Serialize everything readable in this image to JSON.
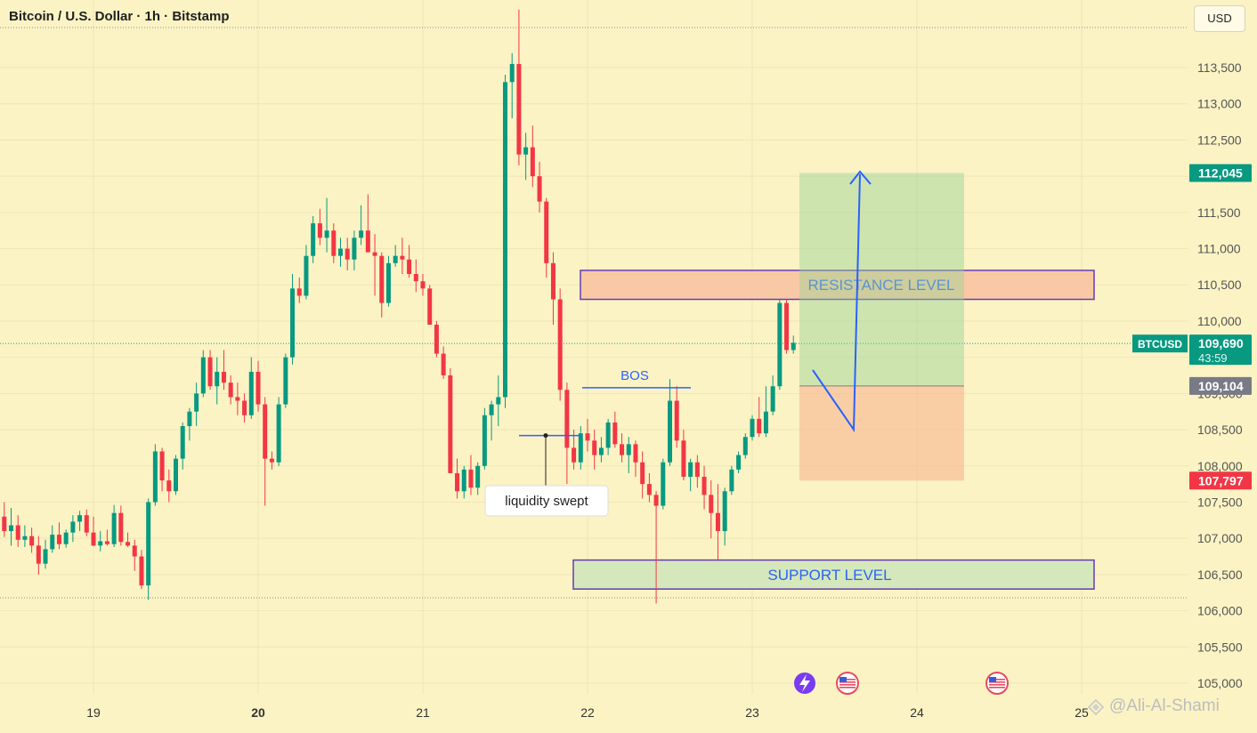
{
  "header": {
    "title": "Bitcoin / U.S. Dollar · 1h · Bitstamp",
    "currency": "USD"
  },
  "symbol_label": "BTCUSD",
  "countdown": "43:59",
  "watermark": "@Ali-Al-Shami",
  "colors": {
    "background": "#fbf3c4",
    "up": "#089981",
    "down": "#f23645",
    "annotation": "#2962ff",
    "zone_border": "#673ab7"
  },
  "chart_data": {
    "type": "candlestick",
    "ylim": [
      104650,
      114500
    ],
    "y_ticks": [
      105000,
      105500,
      106000,
      106500,
      107000,
      107500,
      108000,
      108500,
      109000,
      109500,
      110000,
      110500,
      111000,
      111500,
      112000,
      112500,
      113000,
      113500
    ],
    "x_ticks": [
      {
        "label": "19",
        "day": 19
      },
      {
        "label": "20",
        "day": 20
      },
      {
        "label": "21",
        "day": 21
      },
      {
        "label": "22",
        "day": 22
      },
      {
        "label": "23",
        "day": 23
      },
      {
        "label": "24",
        "day": 24
      },
      {
        "label": "25",
        "day": 25
      }
    ],
    "candles": [
      [
        107300,
        107500,
        107020,
        107100
      ],
      [
        107100,
        107420,
        106900,
        107180
      ],
      [
        107180,
        107320,
        106880,
        106980
      ],
      [
        106980,
        107180,
        106880,
        107030
      ],
      [
        107030,
        107150,
        106800,
        106900
      ],
      [
        106900,
        107030,
        106500,
        106650
      ],
      [
        106650,
        106980,
        106580,
        106850
      ],
      [
        106850,
        107180,
        106800,
        107050
      ],
      [
        107050,
        107220,
        106850,
        106920
      ],
      [
        106920,
        107120,
        106870,
        107080
      ],
      [
        107080,
        107320,
        106950,
        107230
      ],
      [
        107230,
        107380,
        107100,
        107320
      ],
      [
        107320,
        107400,
        107030,
        107080
      ],
      [
        107080,
        107300,
        106890,
        106900
      ],
      [
        106900,
        107100,
        106820,
        106960
      ],
      [
        106960,
        107120,
        106900,
        106920
      ],
      [
        106920,
        107460,
        106880,
        107350
      ],
      [
        107350,
        107450,
        106900,
        106950
      ],
      [
        106950,
        107080,
        106880,
        106900
      ],
      [
        106900,
        106980,
        106550,
        106750
      ],
      [
        106750,
        106840,
        106300,
        106350
      ],
      [
        106350,
        107550,
        106150,
        107500
      ],
      [
        107500,
        108300,
        107450,
        108200
      ],
      [
        108200,
        108250,
        107650,
        107800
      ],
      [
        107800,
        107950,
        107500,
        107650
      ],
      [
        107650,
        108150,
        107600,
        108100
      ],
      [
        108100,
        108600,
        107950,
        108550
      ],
      [
        108550,
        108800,
        108350,
        108750
      ],
      [
        108750,
        109150,
        108550,
        109000
      ],
      [
        109000,
        109600,
        108950,
        109500
      ],
      [
        109500,
        109600,
        109050,
        109100
      ],
      [
        109100,
        109500,
        108850,
        109300
      ],
      [
        109300,
        109600,
        109050,
        109150
      ],
      [
        109150,
        109250,
        108850,
        108950
      ],
      [
        108950,
        109150,
        108700,
        108900
      ],
      [
        108900,
        109000,
        108600,
        108700
      ],
      [
        108700,
        109500,
        108650,
        109300
      ],
      [
        109300,
        109450,
        108750,
        108850
      ],
      [
        108850,
        108950,
        107450,
        108100
      ],
      [
        108100,
        108200,
        107950,
        108050
      ],
      [
        108050,
        108950,
        108000,
        108850
      ],
      [
        108850,
        109550,
        108800,
        109500
      ],
      [
        109500,
        110650,
        109400,
        110450
      ],
      [
        110450,
        110600,
        110250,
        110350
      ],
      [
        110350,
        111050,
        110300,
        110900
      ],
      [
        110900,
        111450,
        110800,
        111350
      ],
      [
        111350,
        111550,
        111050,
        111150
      ],
      [
        111150,
        111700,
        110950,
        111250
      ],
      [
        111250,
        111350,
        110800,
        110900
      ],
      [
        110900,
        111150,
        110750,
        111000
      ],
      [
        111000,
        111150,
        110700,
        110850
      ],
      [
        110850,
        111250,
        110700,
        111150
      ],
      [
        111150,
        111600,
        111050,
        111250
      ],
      [
        111250,
        111750,
        110950,
        110950
      ],
      [
        110950,
        111200,
        110350,
        110900
      ],
      [
        110900,
        110950,
        110050,
        110250
      ],
      [
        110250,
        110900,
        110200,
        110800
      ],
      [
        110800,
        111050,
        110750,
        110900
      ],
      [
        110900,
        111150,
        110650,
        110850
      ],
      [
        110850,
        111050,
        110600,
        110650
      ],
      [
        110650,
        110850,
        110400,
        110550
      ],
      [
        110550,
        110650,
        110350,
        110450
      ],
      [
        110450,
        110500,
        109950,
        109950
      ],
      [
        109950,
        110000,
        109500,
        109550
      ],
      [
        109550,
        109650,
        109200,
        109250
      ],
      [
        109250,
        109350,
        107900,
        107900
      ],
      [
        107900,
        108100,
        107550,
        107650
      ],
      [
        107650,
        108000,
        107550,
        107950
      ],
      [
        107950,
        108150,
        107600,
        107700
      ],
      [
        107700,
        108050,
        107600,
        108000
      ],
      [
        108000,
        108800,
        107950,
        108700
      ],
      [
        108700,
        108900,
        108350,
        108850
      ],
      [
        108850,
        109250,
        108550,
        108950
      ],
      [
        108950,
        113400,
        108800,
        113300
      ],
      [
        113300,
        113700,
        112800,
        113550
      ],
      [
        113550,
        114300,
        112150,
        112300
      ],
      [
        112300,
        112600,
        111950,
        112400
      ],
      [
        112400,
        112700,
        111850,
        112000
      ],
      [
        112000,
        112200,
        111500,
        111650
      ],
      [
        111650,
        111700,
        110600,
        110800
      ],
      [
        110800,
        110950,
        109950,
        110300
      ],
      [
        110300,
        110450,
        108900,
        109050
      ],
      [
        109050,
        109150,
        107750,
        108250
      ],
      [
        108250,
        108500,
        107950,
        108050
      ],
      [
        108050,
        108550,
        107950,
        108450
      ],
      [
        108450,
        108650,
        108200,
        108350
      ],
      [
        108350,
        108500,
        107950,
        108150
      ],
      [
        108150,
        108400,
        108050,
        108250
      ],
      [
        108250,
        108650,
        108150,
        108600
      ],
      [
        108600,
        108750,
        108250,
        108300
      ],
      [
        108300,
        108450,
        108050,
        108150
      ],
      [
        108150,
        108400,
        107900,
        108300
      ],
      [
        108300,
        108350,
        107850,
        108050
      ],
      [
        108050,
        108200,
        107550,
        107750
      ],
      [
        107750,
        107900,
        107500,
        107600
      ],
      [
        107600,
        107650,
        106100,
        107450
      ],
      [
        107450,
        108100,
        107400,
        108050
      ],
      [
        108050,
        109200,
        108000,
        108900
      ],
      [
        108900,
        109100,
        108250,
        108350
      ],
      [
        108350,
        108500,
        107800,
        107850
      ],
      [
        107850,
        108100,
        107650,
        108050
      ],
      [
        108050,
        108150,
        107700,
        107850
      ],
      [
        107850,
        108000,
        107400,
        107600
      ],
      [
        107600,
        107800,
        107000,
        107350
      ],
      [
        107350,
        107750,
        106700,
        107100
      ],
      [
        107100,
        107700,
        106900,
        107650
      ],
      [
        107650,
        108000,
        107600,
        107950
      ],
      [
        107950,
        108200,
        107900,
        108150
      ],
      [
        108150,
        108450,
        108100,
        108400
      ],
      [
        108400,
        108700,
        108350,
        108650
      ],
      [
        108650,
        108950,
        108400,
        108450
      ],
      [
        108450,
        109100,
        108400,
        108750
      ],
      [
        108750,
        109250,
        108700,
        109100
      ],
      [
        109100,
        110300,
        109050,
        110250
      ],
      [
        110250,
        110300,
        109550,
        109600
      ],
      [
        109600,
        109800,
        109550,
        109700
      ]
    ],
    "zones": [
      {
        "label": "RESISTANCE LEVEL",
        "low": 110300,
        "high": 110700
      },
      {
        "label": "SUPPORT LEVEL",
        "low": 106300,
        "high": 106700
      }
    ],
    "position": {
      "entry": 109104,
      "target": 112045,
      "stop": 107797
    },
    "annotations": [
      {
        "text": "BOS",
        "price": 109080
      },
      {
        "text": "liquidity swept",
        "price": 108420
      }
    ],
    "price_labels": [
      {
        "name": "target",
        "text": "112,045",
        "value": 112045
      },
      {
        "name": "last",
        "text": "109,690",
        "value": 109690
      },
      {
        "name": "entry",
        "text": "109,104",
        "value": 109104
      },
      {
        "name": "stop",
        "text": "107,797",
        "value": 107797
      }
    ]
  }
}
